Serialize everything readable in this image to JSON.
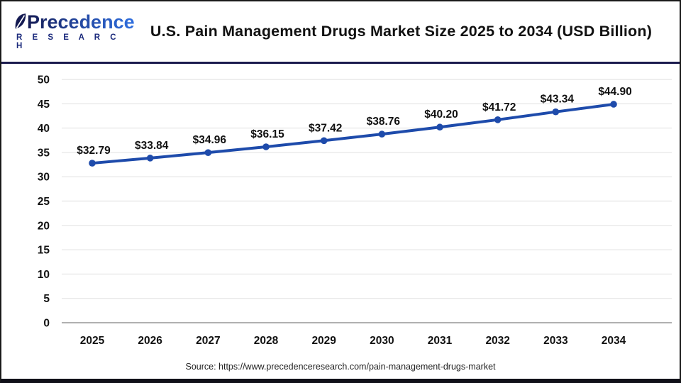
{
  "header": {
    "logo_line1": "Precedence",
    "logo_line2": "R E S E A R C H",
    "title": "U.S. Pain Management Drugs Market Size 2025 to 2034 (USD Billion)"
  },
  "chart_data": {
    "type": "line",
    "title": "U.S. Pain Management Drugs Market Size 2025 to 2034 (USD Billion)",
    "categories": [
      "2025",
      "2026",
      "2027",
      "2028",
      "2029",
      "2030",
      "2031",
      "2032",
      "2033",
      "2034"
    ],
    "series": [
      {
        "name": "U.S. Pain Management Drugs Market Size (USD Billion)",
        "values": [
          32.79,
          33.84,
          34.96,
          36.15,
          37.42,
          38.76,
          40.2,
          41.72,
          43.34,
          44.9
        ]
      }
    ],
    "data_labels": [
      "$32.79",
      "$33.84",
      "$34.96",
      "$36.15",
      "$37.42",
      "$38.76",
      "$40.20",
      "$41.72",
      "$43.34",
      "$44.90"
    ],
    "label_prefix": "$",
    "xlabel": "",
    "ylabel": "",
    "ylim": [
      0,
      50
    ],
    "ytick_step": 5,
    "yticks": [
      0,
      5,
      10,
      15,
      20,
      25,
      30,
      35,
      40,
      45,
      50
    ],
    "grid": "horizontal",
    "legend": "none",
    "line_color": "#1e4bab",
    "marker_color": "#1e4bab",
    "gridline_color": "#e9e9e9",
    "zeroline_color": "#b0b0b0",
    "tick_label_color": "#111111",
    "data_label_color": "#111111"
  },
  "footer": {
    "source": "Source: https://www.precedenceresearch.com/pain-management-drugs-market"
  }
}
